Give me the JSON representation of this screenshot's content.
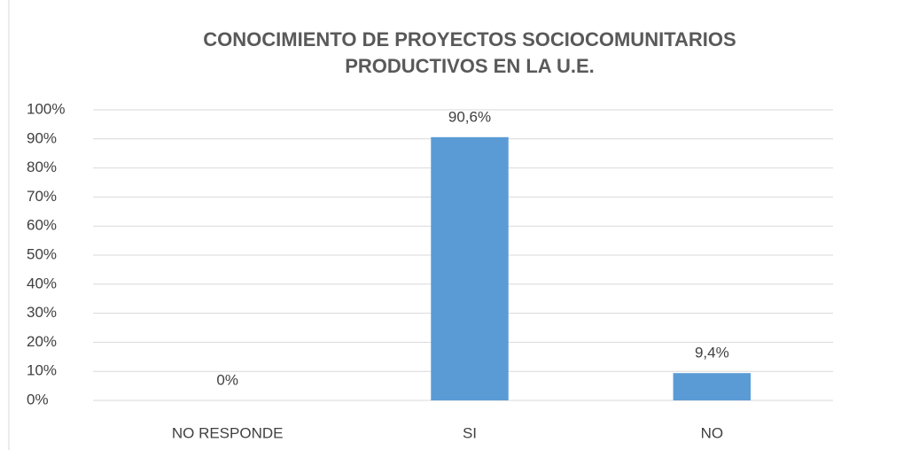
{
  "chart_data": {
    "type": "bar",
    "title": [
      "CONOCIMIENTO DE PROYECTOS SOCIOCOMUNITARIOS",
      "PRODUCTIVOS EN LA U.E."
    ],
    "categories": [
      "NO RESPONDE",
      "SI",
      "NO"
    ],
    "values": [
      0,
      90.6,
      9.4
    ],
    "value_labels": [
      "0%",
      "90,6%",
      "9,4%"
    ],
    "color": "#5b9bd5",
    "ylim": [
      0,
      100
    ],
    "yticks": [
      {
        "value": 0,
        "label": "0%"
      },
      {
        "value": 10,
        "label": "10%"
      },
      {
        "value": 20,
        "label": "20%"
      },
      {
        "value": 30,
        "label": "30%"
      },
      {
        "value": 40,
        "label": "40%"
      },
      {
        "value": 50,
        "label": "50%"
      },
      {
        "value": 60,
        "label": "60%"
      },
      {
        "value": 70,
        "label": "70%"
      },
      {
        "value": 80,
        "label": "80%"
      },
      {
        "value": 90,
        "label": "90%"
      },
      {
        "value": 100,
        "label": "100%"
      }
    ],
    "grid": true
  }
}
